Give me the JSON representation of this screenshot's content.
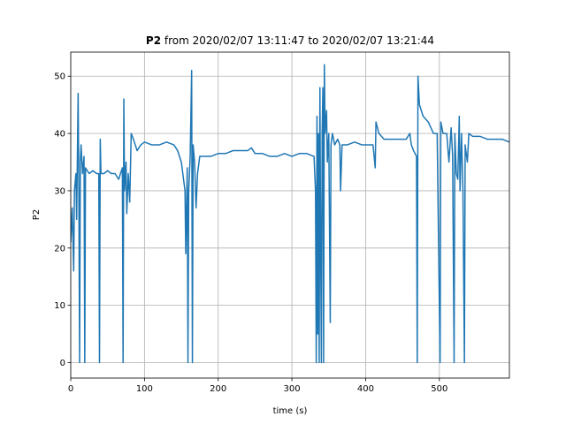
{
  "chart_data": {
    "type": "line",
    "title": [
      "P2",
      "from 2020/02/07 13:11:47 to 2020/02/07 13:21:44"
    ],
    "xlabel": "time (s)",
    "ylabel": "P2",
    "x": [
      0,
      2,
      4,
      5,
      7,
      8,
      10,
      11,
      12,
      13,
      14,
      16,
      18,
      19,
      20,
      25,
      30,
      35,
      38,
      39,
      40,
      41,
      45,
      50,
      55,
      60,
      65,
      70,
      71,
      72,
      73,
      75,
      76,
      78,
      80,
      82,
      85,
      90,
      95,
      100,
      110,
      120,
      130,
      140,
      145,
      150,
      155,
      156,
      158,
      159,
      160,
      162,
      164,
      165,
      166,
      168,
      170,
      172,
      175,
      180,
      190,
      200,
      210,
      220,
      230,
      240,
      245,
      250,
      260,
      270,
      280,
      290,
      300,
      310,
      320,
      330,
      332,
      333,
      334,
      335,
      336,
      337,
      338,
      339,
      340,
      341,
      342,
      343,
      344,
      345,
      347,
      348,
      350,
      352,
      353,
      355,
      358,
      362,
      365,
      366,
      368,
      375,
      385,
      395,
      405,
      410,
      413,
      414,
      418,
      425,
      435,
      445,
      455,
      460,
      462,
      465,
      469,
      470,
      471,
      473,
      478,
      485,
      492,
      497,
      501,
      502,
      505,
      510,
      513,
      516,
      518,
      520,
      521,
      523,
      525,
      527,
      528,
      530,
      532,
      534,
      535,
      538,
      540,
      545,
      555,
      565,
      575,
      585,
      595
    ],
    "series": [
      {
        "name": "P2",
        "color": "#1f77b4",
        "values": [
          21,
          27,
          16,
          30,
          33,
          25,
          47,
          30,
          0,
          35,
          38,
          33,
          36,
          0,
          34,
          33,
          33.5,
          33,
          33,
          0,
          39,
          33,
          33,
          33.5,
          33,
          33,
          32,
          34,
          0,
          46,
          30,
          35,
          26,
          33,
          28,
          40,
          39,
          37,
          38,
          38.5,
          38,
          38,
          38.5,
          38,
          37,
          35,
          30,
          19,
          34,
          0,
          30,
          36,
          51,
          0,
          38,
          35,
          27,
          33,
          36,
          36,
          36,
          36.5,
          36.5,
          37,
          37,
          37,
          37.5,
          36.5,
          36.5,
          36,
          36,
          36.5,
          36,
          36.5,
          36.5,
          36,
          30,
          0,
          43,
          5,
          40,
          0,
          48,
          20,
          0,
          40,
          48,
          0,
          52,
          40,
          44,
          35,
          40,
          7,
          38,
          40,
          38,
          39,
          38,
          30,
          38,
          38,
          38.5,
          38,
          38,
          38,
          34,
          42,
          40,
          39,
          39,
          39,
          39,
          40,
          38,
          37,
          36,
          0,
          50,
          45,
          43,
          42,
          40,
          40,
          0,
          42,
          40,
          40,
          35,
          41,
          36,
          0,
          40,
          33,
          32,
          43,
          30,
          40,
          30,
          0,
          38,
          35,
          40,
          39.5,
          39.5,
          39,
          39,
          39,
          38.5
        ]
      }
    ],
    "xlim": [
      0,
      595
    ],
    "ylim": [
      -2.7,
      54.2
    ],
    "xticks": [
      0,
      100,
      200,
      300,
      400,
      500
    ],
    "yticks": [
      0,
      10,
      20,
      30,
      40,
      50
    ],
    "grid": true
  }
}
